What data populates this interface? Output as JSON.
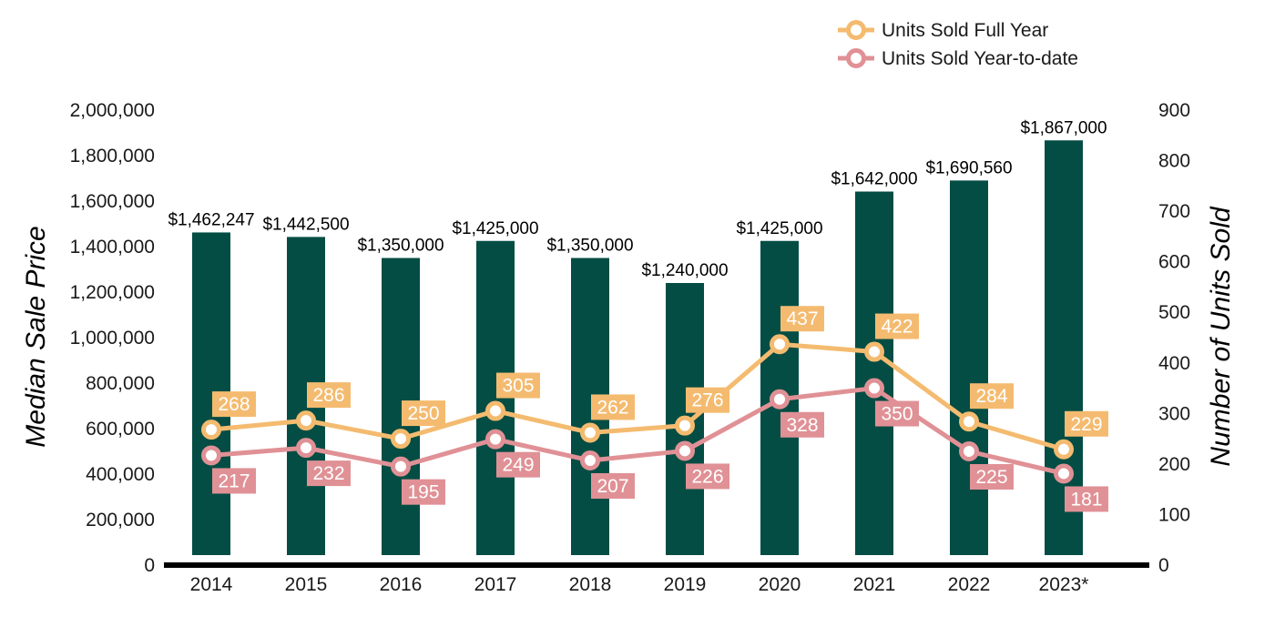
{
  "chart_data": {
    "type": "bar",
    "categories": [
      "2014",
      "2015",
      "2016",
      "2017",
      "2018",
      "2019",
      "2020",
      "2021",
      "2022",
      "2023*"
    ],
    "bar_series": {
      "axis": "left",
      "values": [
        1462247,
        1442500,
        1350000,
        1425000,
        1350000,
        1240000,
        1425000,
        1642000,
        1690560,
        1867000
      ],
      "labels": [
        "$1,462,247",
        "$1,442,500",
        "$1,350,000",
        "$1,425,000",
        "$1,350,000",
        "$1,240,000",
        "$1,425,000",
        "$1,642,000",
        "$1,690,560",
        "$1,867,000"
      ],
      "color": "#034d44"
    },
    "line_series": [
      {
        "name": "Units Sold Full Year",
        "type": "line",
        "axis": "right",
        "values": [
          268,
          286,
          250,
          305,
          262,
          276,
          437,
          422,
          284,
          229
        ],
        "color": "#f4bb70",
        "label_position": "above"
      },
      {
        "name": "Units Sold Year-to-date",
        "type": "line",
        "axis": "right",
        "values": [
          217,
          232,
          195,
          249,
          207,
          226,
          328,
          350,
          225,
          181
        ],
        "color": "#e09196",
        "label_position": "below"
      }
    ],
    "y_left": {
      "label": "Median Sale Price",
      "range": [
        0,
        2000000
      ],
      "ticks": [
        "0",
        "200,000",
        "400,000",
        "600,000",
        "800,000",
        "1,000,000",
        "1,200,000",
        "1,400,000",
        "1,600,000",
        "1,800,000",
        "2,000,000"
      ]
    },
    "y_right": {
      "label": "Number of Units Sold",
      "range": [
        0,
        900
      ],
      "ticks": [
        "0",
        "100",
        "200",
        "300",
        "400",
        "500",
        "600",
        "700",
        "800",
        "900"
      ]
    },
    "legend": {
      "placement": "top-right",
      "entries": [
        "Units Sold Full Year",
        "Units Sold Year-to-date"
      ]
    },
    "grid": false,
    "axis_color": "#000000"
  }
}
